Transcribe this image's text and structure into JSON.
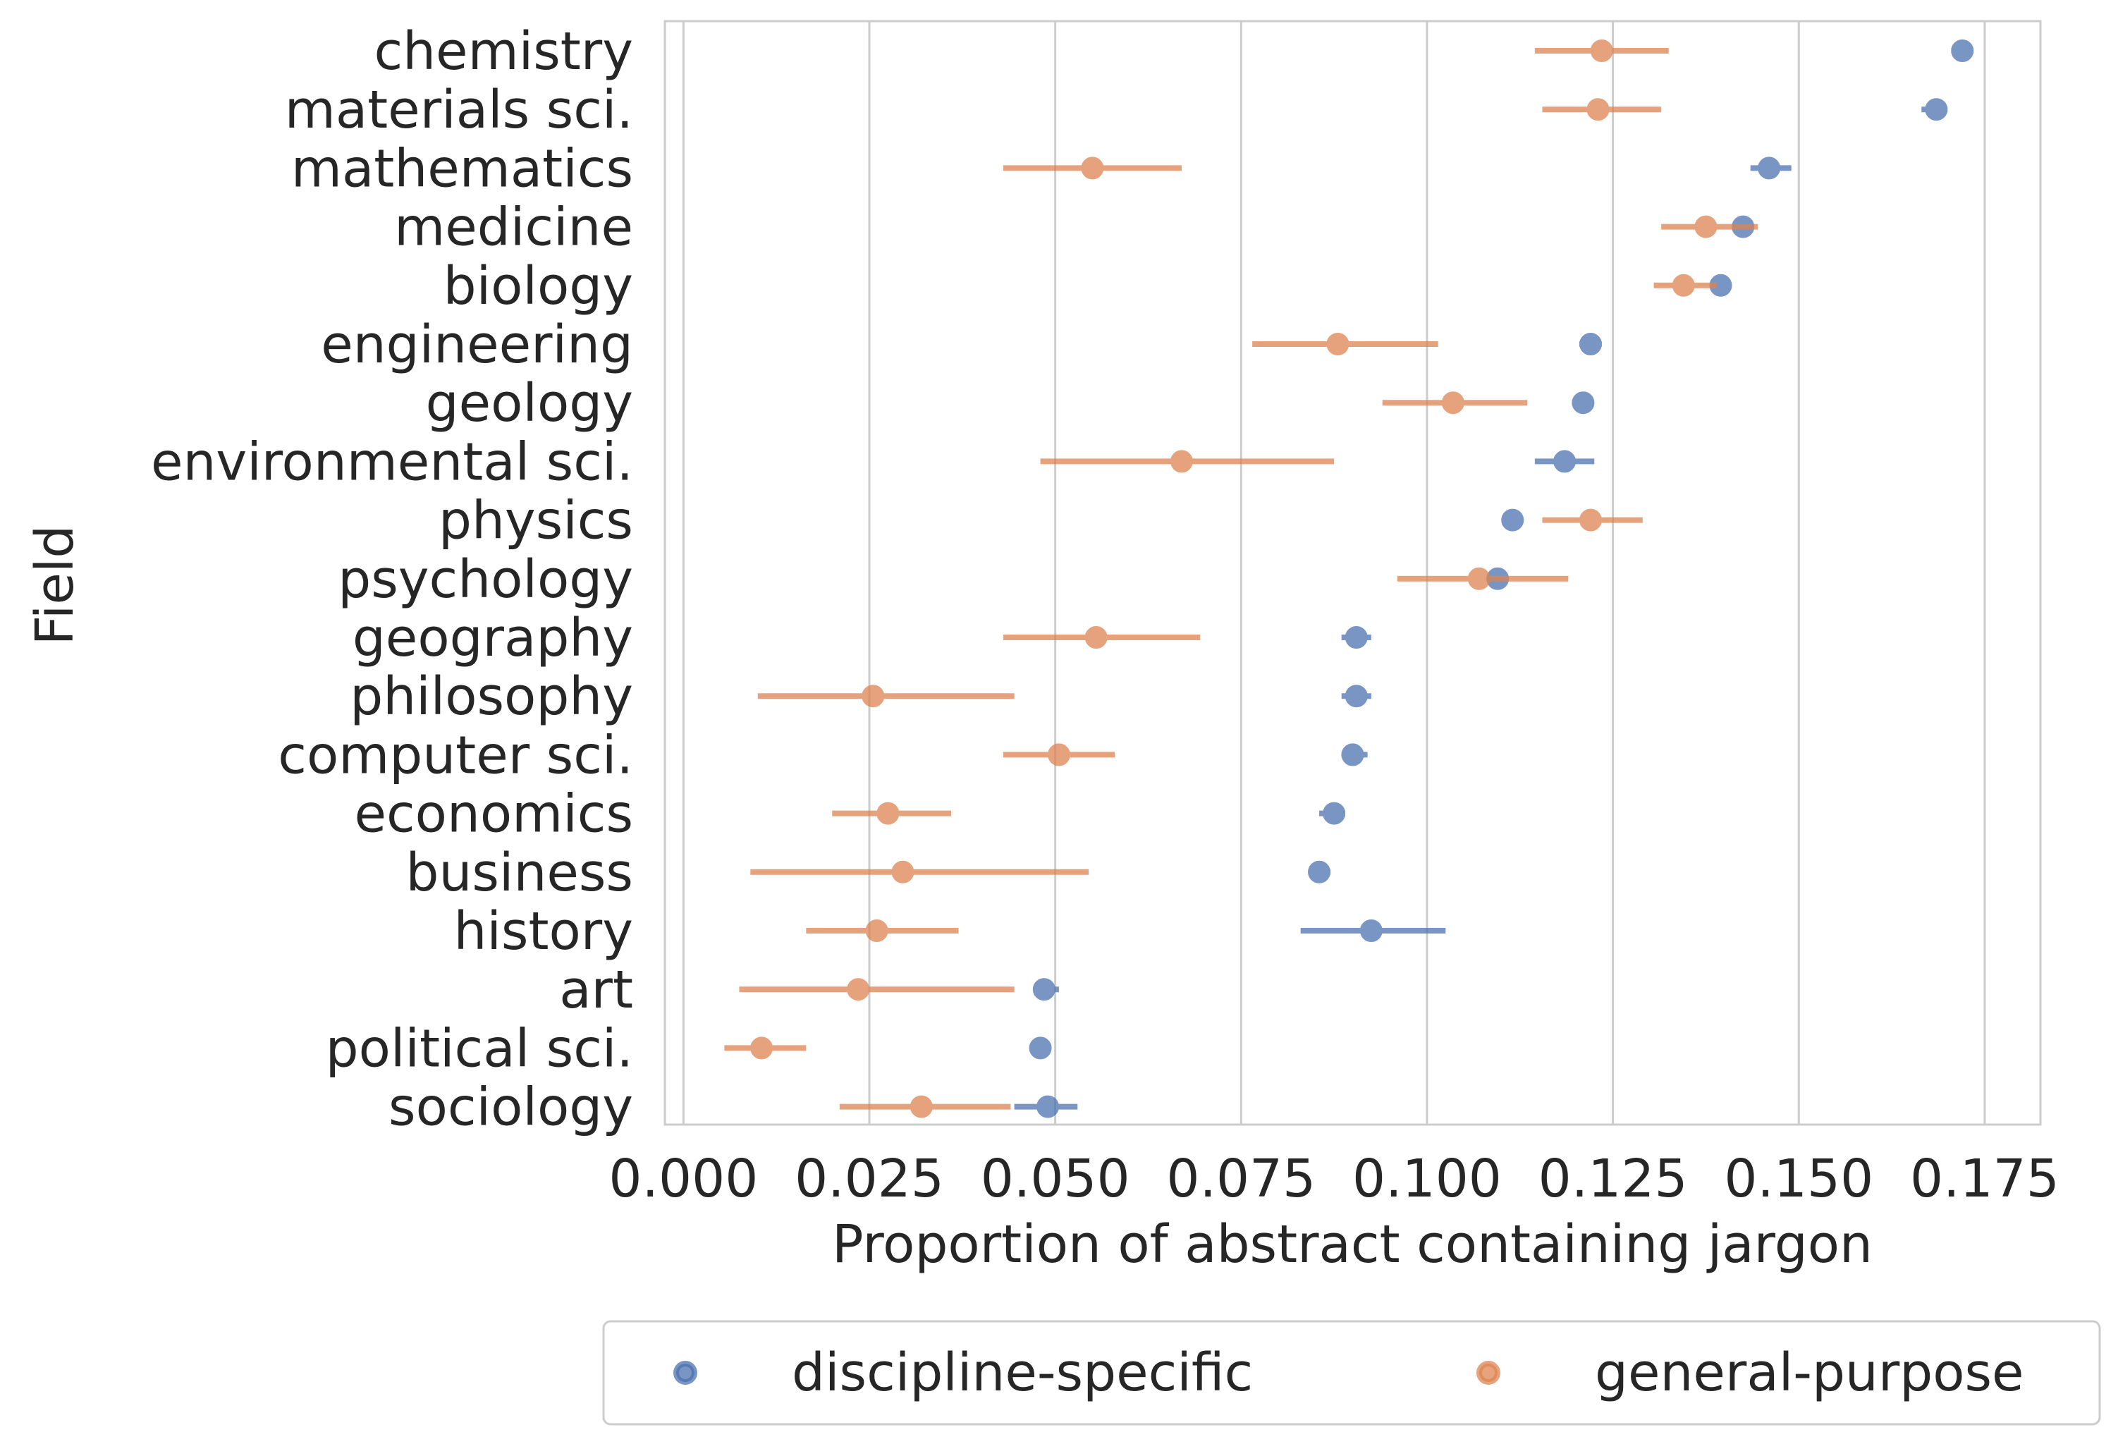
{
  "chart_data": {
    "type": "scatter",
    "subtype": "point-range (dot with horizontal confidence interval)",
    "title": "",
    "xlabel": "Proportion of abstract containing jargon",
    "ylabel": "Field",
    "xlim": [
      -0.0025,
      0.1825
    ],
    "x_ticks": [
      0.0,
      0.025,
      0.05,
      0.075,
      0.1,
      0.125,
      0.15,
      0.175
    ],
    "x_tick_labels": [
      "0.000",
      "0.025",
      "0.050",
      "0.075",
      "0.100",
      "0.125",
      "0.150",
      "0.175"
    ],
    "grid": "vertical",
    "legend_position": "bottom-center",
    "categories": [
      "chemistry",
      "materials sci.",
      "mathematics",
      "medicine",
      "biology",
      "engineering",
      "geology",
      "environmental sci.",
      "physics",
      "psychology",
      "geography",
      "philosophy",
      "computer sci.",
      "economics",
      "business",
      "history",
      "art",
      "political sci.",
      "sociology"
    ],
    "series": [
      {
        "name": "discipline-specific",
        "color": "#4c72b0",
        "values": [
          0.172,
          0.1685,
          0.146,
          0.1425,
          0.1395,
          0.122,
          0.121,
          0.1185,
          0.1115,
          0.1095,
          0.0905,
          0.0905,
          0.09,
          0.0875,
          0.0855,
          0.0925,
          0.0485,
          0.048,
          0.049
        ],
        "ci_low": [
          0.1705,
          0.1665,
          0.1435,
          0.1415,
          0.1385,
          0.1205,
          0.1195,
          0.1145,
          0.1105,
          0.1085,
          0.0885,
          0.0885,
          0.0885,
          0.0855,
          0.0845,
          0.083,
          0.0475,
          0.047,
          0.0445
        ],
        "ci_high": [
          0.1735,
          0.17,
          0.149,
          0.1435,
          0.1405,
          0.1235,
          0.122,
          0.1225,
          0.1125,
          0.1105,
          0.0925,
          0.0925,
          0.092,
          0.089,
          0.087,
          0.1025,
          0.0505,
          0.049,
          0.053
        ]
      },
      {
        "name": "general-purpose",
        "color": "#dd8452",
        "values": [
          0.1235,
          0.123,
          0.055,
          0.1375,
          0.1345,
          0.088,
          0.1035,
          0.067,
          0.122,
          0.107,
          0.0555,
          0.0255,
          0.0505,
          0.0275,
          0.0295,
          0.026,
          0.0235,
          0.0105,
          0.032
        ],
        "ci_low": [
          0.1145,
          0.1155,
          0.043,
          0.1315,
          0.1305,
          0.0765,
          0.094,
          0.048,
          0.1155,
          0.096,
          0.043,
          0.01,
          0.043,
          0.02,
          0.009,
          0.0165,
          0.0075,
          0.0055,
          0.021
        ],
        "ci_high": [
          0.1325,
          0.1315,
          0.067,
          0.1445,
          0.139,
          0.1015,
          0.1135,
          0.0875,
          0.129,
          0.119,
          0.0695,
          0.0445,
          0.058,
          0.036,
          0.0545,
          0.037,
          0.0445,
          0.0165,
          0.044
        ]
      }
    ]
  }
}
